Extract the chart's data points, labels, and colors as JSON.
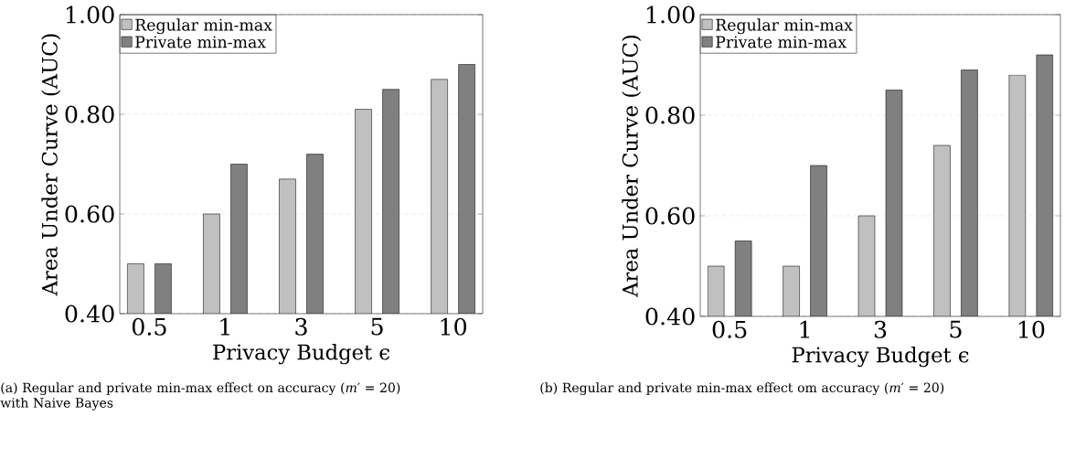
{
  "chart_data": [
    {
      "type": "bar",
      "xlabel": "Privacy Budget ϵ",
      "ylabel": "Area Under Curve (AUC)",
      "categories": [
        "0.5",
        "1",
        "3",
        "5",
        "10"
      ],
      "series": [
        {
          "name": "Regular min-max",
          "color": "#c0c0c0",
          "values": [
            0.5,
            0.6,
            0.67,
            0.81,
            0.87
          ]
        },
        {
          "name": "Private min-max",
          "color": "#808080",
          "values": [
            0.5,
            0.7,
            0.72,
            0.85,
            0.9
          ]
        }
      ],
      "ylim": [
        0.4,
        1.0
      ],
      "yticks": [
        {
          "value": 0.4,
          "label": "0.40"
        },
        {
          "value": 0.6,
          "label": "0.60"
        },
        {
          "value": 0.8,
          "label": "0.80"
        },
        {
          "value": 1.0,
          "label": "1.00"
        }
      ],
      "grid": "y",
      "legend": "top left",
      "annotations": [
        "(a) Regular and private min-max effect on accuracy (*m*′ = 20) with Naive Bayes"
      ]
    },
    {
      "type": "bar",
      "xlabel": "Privacy Budget ϵ",
      "ylabel": "Area Under Curve (AUC)",
      "categories": [
        "0.5",
        "1",
        "3",
        "5",
        "10"
      ],
      "series": [
        {
          "name": "Regular min-max",
          "color": "#c0c0c0",
          "values": [
            0.5,
            0.5,
            0.6,
            0.74,
            0.88
          ]
        },
        {
          "name": "Private min-max",
          "color": "#808080",
          "values": [
            0.55,
            0.7,
            0.85,
            0.89,
            0.92
          ]
        }
      ],
      "ylim": [
        0.4,
        1.0
      ],
      "yticks": [
        {
          "value": 0.4,
          "label": "0.40"
        },
        {
          "value": 0.6,
          "label": "0.60"
        },
        {
          "value": 0.8,
          "label": "0.80"
        },
        {
          "value": 1.0,
          "label": "1.00"
        }
      ],
      "grid": "y",
      "legend": "top left",
      "annotations": [
        "(b) Regular and private min-max effect om accuracy (*m*′ = 20)"
      ]
    }
  ]
}
